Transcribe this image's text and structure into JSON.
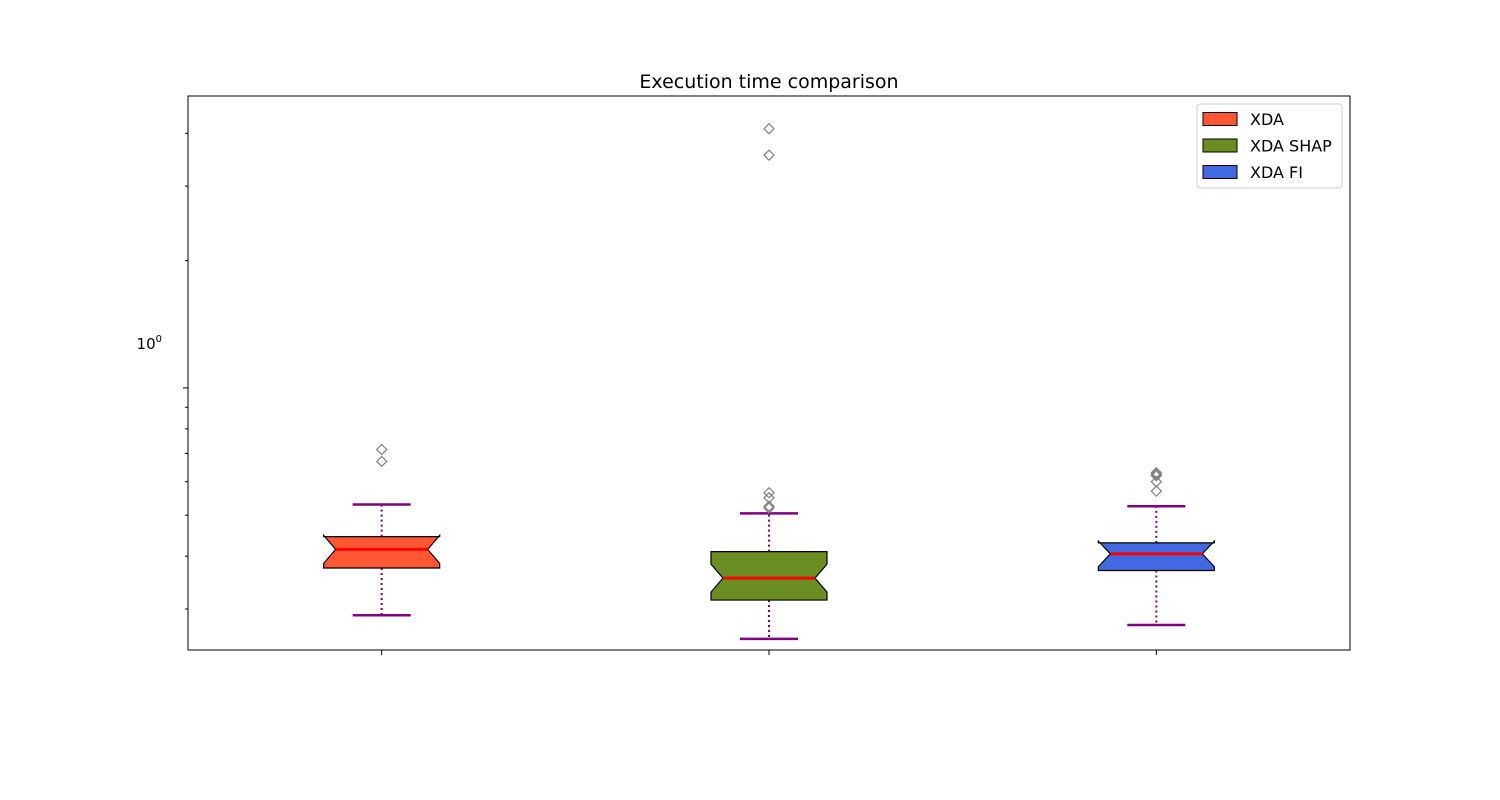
{
  "chart_data": {
    "type": "boxplot",
    "title": "Execution time comparison",
    "xlabel": "",
    "ylabel": "",
    "yscale": "log",
    "ylim": [
      0.24,
      4.9
    ],
    "y_tick_label": {
      "base": "10",
      "exp": "0",
      "value": 1.0
    },
    "notched": true,
    "grid": false,
    "legend_placement": "top-right",
    "series": [
      {
        "name": "XDA",
        "color": "#ff5733",
        "whisker_low": 0.29,
        "q1": 0.375,
        "median": 0.415,
        "q3": 0.445,
        "whisker_high": 0.53,
        "outliers": [
          0.715,
          0.67
        ]
      },
      {
        "name": "XDA SHAP",
        "color": "#6b8e23",
        "whisker_low": 0.255,
        "q1": 0.315,
        "median": 0.355,
        "q3": 0.41,
        "whisker_high": 0.505,
        "outliers": [
          4.1,
          3.55,
          0.565,
          0.55,
          0.525,
          0.52
        ]
      },
      {
        "name": "XDA FI",
        "color": "#4169e1",
        "whisker_low": 0.275,
        "q1": 0.37,
        "median": 0.405,
        "q3": 0.43,
        "whisker_high": 0.525,
        "outliers": [
          0.63,
          0.625,
          0.62,
          0.6,
          0.57
        ]
      }
    ],
    "median_color": "#ff0000",
    "whisker_color": "#800080",
    "outlier_color": "#808080"
  }
}
